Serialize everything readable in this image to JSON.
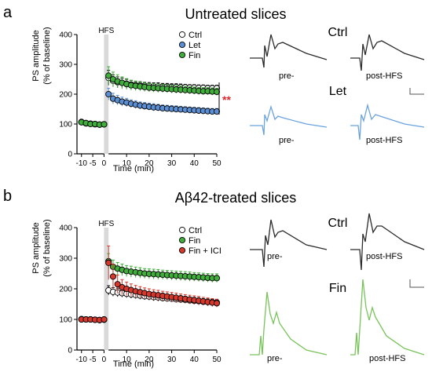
{
  "panels": [
    {
      "letter": "a",
      "title": "Untreated slices",
      "trace_labels": [
        "Ctrl",
        "Let"
      ],
      "pre_label": "pre-",
      "post_label": "post-HFS",
      "significance": "**"
    },
    {
      "letter": "b",
      "title_prefix": "A",
      "title_beta": "β",
      "title_suffix": "42-treated slices",
      "trace_labels": [
        "Ctrl",
        "Fin"
      ],
      "pre_label": "pre-",
      "post_label": "post-HFS",
      "significance": ""
    }
  ],
  "colors": {
    "ctrl": "#ffffff",
    "let": "#5b8fd4",
    "fin": "#3fae3a",
    "fin_ici": "#d8372b",
    "hfs_band": "#d9d9d9",
    "significance": "#e0242b",
    "trace_ctrl": "#2a2a2a",
    "trace_let": "#6aa3de",
    "trace_fin": "#78c35a"
  },
  "chart_data": [
    {
      "type": "scatter",
      "xlabel": "Time (min)",
      "ylabel": "PS amplitude",
      "ylabel2": "(% of baseline)",
      "xticks": [
        -10,
        -5,
        0,
        10,
        20,
        30,
        40,
        50
      ],
      "yticks": [
        0,
        100,
        200,
        300,
        400
      ],
      "xlim": [
        -12,
        50
      ],
      "ylim": [
        0,
        400
      ],
      "band_label": "HFS",
      "band": [
        0,
        2
      ],
      "series": [
        {
          "name": "Ctrl",
          "color_key": "ctrl",
          "x": [
            -10,
            -8,
            -6,
            -4,
            -2,
            0,
            2,
            4,
            6,
            8,
            10,
            12,
            14,
            16,
            18,
            20,
            22,
            24,
            26,
            28,
            30,
            32,
            34,
            36,
            38,
            40,
            42,
            44,
            46,
            48,
            50
          ],
          "y": [
            106,
            102,
            101,
            100,
            98,
            99,
            255,
            245,
            240,
            238,
            235,
            232,
            230,
            229,
            228,
            227,
            226,
            226,
            225,
            225,
            224,
            224,
            223,
            223,
            222,
            222,
            221,
            221,
            220,
            220,
            220
          ],
          "err": [
            6,
            5,
            5,
            4,
            4,
            4,
            25,
            20,
            18,
            16,
            15,
            14,
            13,
            13,
            12,
            12,
            12,
            12,
            11,
            11,
            11,
            11,
            11,
            10,
            10,
            10,
            10,
            10,
            10,
            10,
            10
          ]
        },
        {
          "name": "Let",
          "color_key": "let",
          "x": [
            -10,
            -8,
            -6,
            -4,
            -2,
            0,
            2,
            4,
            6,
            8,
            10,
            12,
            14,
            16,
            18,
            20,
            22,
            24,
            26,
            28,
            30,
            32,
            34,
            36,
            38,
            40,
            42,
            44,
            46,
            48,
            50
          ],
          "y": [
            107,
            103,
            101,
            99,
            98,
            99,
            200,
            185,
            180,
            175,
            172,
            168,
            165,
            162,
            160,
            158,
            156,
            155,
            153,
            152,
            151,
            150,
            149,
            148,
            147,
            146,
            145,
            144,
            143,
            142,
            142
          ],
          "err": [
            6,
            5,
            5,
            4,
            4,
            4,
            20,
            18,
            16,
            15,
            14,
            13,
            13,
            12,
            12,
            12,
            12,
            11,
            11,
            11,
            11,
            11,
            10,
            10,
            10,
            10,
            10,
            10,
            10,
            10,
            10
          ]
        },
        {
          "name": "Fin",
          "color_key": "fin",
          "x": [
            -10,
            -8,
            -6,
            -4,
            -2,
            0,
            2,
            4,
            6,
            8,
            10,
            12,
            14,
            16,
            18,
            20,
            22,
            24,
            26,
            28,
            30,
            32,
            34,
            36,
            38,
            40,
            42,
            44,
            46,
            48,
            50
          ],
          "y": [
            106,
            103,
            100,
            100,
            98,
            99,
            262,
            250,
            243,
            238,
            234,
            230,
            228,
            226,
            224,
            222,
            221,
            220,
            219,
            218,
            217,
            216,
            215,
            214,
            213,
            212,
            211,
            210,
            210,
            209,
            208
          ],
          "err": [
            6,
            5,
            5,
            4,
            4,
            4,
            30,
            24,
            22,
            20,
            18,
            17,
            16,
            15,
            15,
            14,
            14,
            14,
            13,
            13,
            13,
            13,
            12,
            12,
            12,
            12,
            12,
            12,
            12,
            12,
            12
          ]
        }
      ]
    },
    {
      "type": "scatter",
      "xlabel": "Time (min)",
      "ylabel": "PS amplitude",
      "ylabel2": "(% of baseline)",
      "xticks": [
        -10,
        -5,
        0,
        10,
        20,
        30,
        40,
        50
      ],
      "yticks": [
        0,
        100,
        200,
        300,
        400
      ],
      "xlim": [
        -12,
        50
      ],
      "ylim": [
        0,
        400
      ],
      "band_label": "HFS",
      "band": [
        0,
        2
      ],
      "series": [
        {
          "name": "Ctrl",
          "color_key": "ctrl",
          "x": [
            -10,
            -8,
            -6,
            -4,
            -2,
            0,
            2,
            4,
            6,
            8,
            10,
            12,
            14,
            16,
            18,
            20,
            22,
            24,
            26,
            28,
            30,
            32,
            34,
            36,
            38,
            40,
            42,
            44,
            46,
            48,
            50
          ],
          "y": [
            100,
            100,
            100,
            99,
            98,
            99,
            195,
            190,
            188,
            186,
            184,
            182,
            180,
            178,
            176,
            175,
            173,
            172,
            170,
            169,
            168,
            166,
            165,
            164,
            162,
            161,
            160,
            158,
            157,
            156,
            155
          ],
          "err": [
            5,
            5,
            5,
            4,
            4,
            4,
            15,
            14,
            14,
            13,
            13,
            13,
            12,
            12,
            12,
            12,
            12,
            12,
            11,
            11,
            11,
            11,
            11,
            11,
            11,
            11,
            10,
            10,
            10,
            10,
            10
          ]
        },
        {
          "name": "Fin",
          "color_key": "fin",
          "x": [
            -10,
            -8,
            -6,
            -4,
            -2,
            0,
            2,
            4,
            6,
            8,
            10,
            12,
            14,
            16,
            18,
            20,
            22,
            24,
            26,
            28,
            30,
            32,
            34,
            36,
            38,
            40,
            42,
            44,
            46,
            48,
            50
          ],
          "y": [
            101,
            100,
            100,
            99,
            98,
            100,
            290,
            272,
            266,
            262,
            258,
            256,
            254,
            252,
            250,
            249,
            248,
            247,
            246,
            245,
            244,
            243,
            242,
            241,
            240,
            239,
            238,
            237,
            236,
            235,
            235
          ],
          "err": [
            5,
            5,
            5,
            4,
            4,
            4,
            25,
            22,
            20,
            19,
            18,
            18,
            17,
            17,
            16,
            16,
            16,
            16,
            15,
            15,
            15,
            15,
            15,
            15,
            15,
            14,
            14,
            14,
            14,
            14,
            14
          ]
        },
        {
          "name": "Fin + ICI",
          "color_key": "fin_ici",
          "x": [
            -10,
            -8,
            -6,
            -4,
            -2,
            0,
            2,
            4,
            6,
            8,
            10,
            12,
            14,
            16,
            18,
            20,
            22,
            24,
            26,
            28,
            30,
            32,
            34,
            36,
            38,
            40,
            42,
            44,
            46,
            48,
            50
          ],
          "y": [
            100,
            100,
            100,
            99,
            98,
            100,
            285,
            240,
            215,
            205,
            200,
            196,
            192,
            189,
            186,
            183,
            181,
            179,
            177,
            175,
            173,
            171,
            169,
            167,
            165,
            163,
            161,
            159,
            157,
            155,
            153
          ],
          "err": [
            5,
            5,
            5,
            4,
            4,
            4,
            55,
            40,
            30,
            25,
            22,
            20,
            19,
            18,
            17,
            17,
            16,
            16,
            15,
            15,
            15,
            15,
            14,
            14,
            14,
            14,
            14,
            13,
            13,
            13,
            13
          ]
        }
      ]
    }
  ]
}
